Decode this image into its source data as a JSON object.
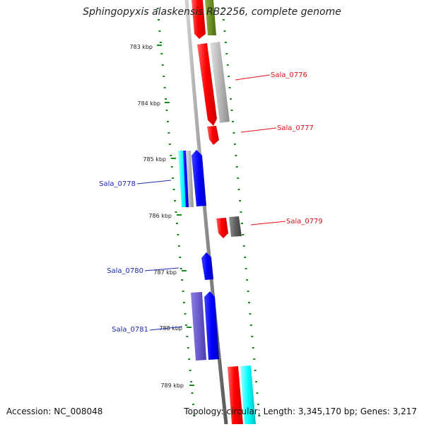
{
  "title": "Sphingopyxis alaskensis RB2256, complete genome",
  "footer": {
    "accession": "Accession: NC_008048",
    "summary": "Topology: circular; Length: 3,345,170 bp; Genes: 3,217"
  },
  "ticks": [
    {
      "label": "783 kbp"
    },
    {
      "label": "784 kbp"
    },
    {
      "label": "785 kbp"
    },
    {
      "label": "786 kbp"
    },
    {
      "label": "787 kbp"
    },
    {
      "label": "788 kbp"
    },
    {
      "label": "789 kbp"
    }
  ],
  "gene_labels": [
    {
      "label": "Sala_0776",
      "color": "#e0121a"
    },
    {
      "label": "Sala_0777",
      "color": "#e0121a"
    },
    {
      "label": "Sala_0778",
      "color": "#1c2bb0"
    },
    {
      "label": "Sala_0779",
      "color": "#e0121a"
    },
    {
      "label": "Sala_0780",
      "color": "#1c2bb0"
    },
    {
      "label": "Sala_0781",
      "color": "#1c2bb0"
    }
  ],
  "colors": {
    "backbone": "#8c8c8c",
    "tick": "#1a8a1a",
    "red": "#ff0000",
    "blue": "#0000ff",
    "cyan": "#00ffff",
    "olive": "#6b8e23",
    "gray": "#b0b0b0",
    "darkgray": "#606060",
    "slate": "#6a5acd"
  }
}
